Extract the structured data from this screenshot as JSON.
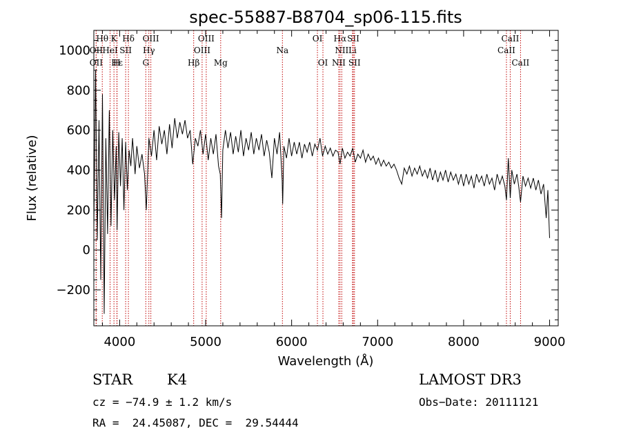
{
  "chart_data": {
    "type": "line",
    "title": "spec-55887-B8704_sp06-115.fits",
    "xlabel": "Wavelength (Å)",
    "ylabel": "Flux (relative)",
    "xlim": [
      3700,
      9100
    ],
    "ylim": [
      -380,
      1100
    ],
    "x_ticks": [
      4000,
      5000,
      6000,
      7000,
      8000,
      9000
    ],
    "y_ticks": [
      -200,
      0,
      200,
      400,
      600,
      800,
      1000
    ],
    "series": [
      {
        "name": "flux",
        "color": "#000000",
        "points": [
          [
            3700,
            100
          ],
          [
            3720,
            900
          ],
          [
            3740,
            50
          ],
          [
            3760,
            650
          ],
          [
            3780,
            -150
          ],
          [
            3800,
            780
          ],
          [
            3820,
            -320
          ],
          [
            3840,
            560
          ],
          [
            3860,
            80
          ],
          [
            3880,
            700
          ],
          [
            3900,
            120
          ],
          [
            3920,
            600
          ],
          [
            3940,
            250
          ],
          [
            3960,
            520
          ],
          [
            3970,
            100
          ],
          [
            3990,
            590
          ],
          [
            4010,
            320
          ],
          [
            4030,
            560
          ],
          [
            4050,
            200
          ],
          [
            4070,
            540
          ],
          [
            4090,
            300
          ],
          [
            4110,
            500
          ],
          [
            4130,
            420
          ],
          [
            4150,
            560
          ],
          [
            4180,
            380
          ],
          [
            4200,
            520
          ],
          [
            4230,
            410
          ],
          [
            4260,
            480
          ],
          [
            4290,
            380
          ],
          [
            4310,
            200
          ],
          [
            4340,
            560
          ],
          [
            4370,
            470
          ],
          [
            4400,
            600
          ],
          [
            4430,
            450
          ],
          [
            4460,
            620
          ],
          [
            4490,
            530
          ],
          [
            4520,
            600
          ],
          [
            4550,
            480
          ],
          [
            4580,
            630
          ],
          [
            4610,
            510
          ],
          [
            4640,
            660
          ],
          [
            4670,
            560
          ],
          [
            4700,
            640
          ],
          [
            4730,
            580
          ],
          [
            4760,
            650
          ],
          [
            4790,
            560
          ],
          [
            4820,
            600
          ],
          [
            4850,
            430
          ],
          [
            4880,
            560
          ],
          [
            4910,
            520
          ],
          [
            4940,
            600
          ],
          [
            4970,
            480
          ],
          [
            5000,
            580
          ],
          [
            5030,
            450
          ],
          [
            5060,
            560
          ],
          [
            5090,
            480
          ],
          [
            5120,
            580
          ],
          [
            5150,
            420
          ],
          [
            5170,
            380
          ],
          [
            5185,
            160
          ],
          [
            5200,
            500
          ],
          [
            5230,
            600
          ],
          [
            5260,
            510
          ],
          [
            5290,
            590
          ],
          [
            5320,
            480
          ],
          [
            5350,
            570
          ],
          [
            5380,
            490
          ],
          [
            5410,
            600
          ],
          [
            5440,
            470
          ],
          [
            5470,
            560
          ],
          [
            5500,
            500
          ],
          [
            5530,
            590
          ],
          [
            5560,
            480
          ],
          [
            5590,
            560
          ],
          [
            5620,
            500
          ],
          [
            5650,
            580
          ],
          [
            5680,
            470
          ],
          [
            5710,
            550
          ],
          [
            5740,
            490
          ],
          [
            5770,
            360
          ],
          [
            5800,
            560
          ],
          [
            5830,
            480
          ],
          [
            5860,
            590
          ],
          [
            5890,
            350
          ],
          [
            5896,
            230
          ],
          [
            5910,
            520
          ],
          [
            5940,
            460
          ],
          [
            5970,
            560
          ],
          [
            6000,
            470
          ],
          [
            6030,
            540
          ],
          [
            6060,
            480
          ],
          [
            6090,
            540
          ],
          [
            6120,
            460
          ],
          [
            6150,
            530
          ],
          [
            6180,
            490
          ],
          [
            6210,
            540
          ],
          [
            6240,
            470
          ],
          [
            6270,
            530
          ],
          [
            6300,
            500
          ],
          [
            6330,
            560
          ],
          [
            6360,
            470
          ],
          [
            6390,
            520
          ],
          [
            6420,
            480
          ],
          [
            6450,
            510
          ],
          [
            6480,
            470
          ],
          [
            6510,
            500
          ],
          [
            6540,
            490
          ],
          [
            6563,
            430
          ],
          [
            6590,
            510
          ],
          [
            6620,
            460
          ],
          [
            6650,
            490
          ],
          [
            6680,
            470
          ],
          [
            6710,
            510
          ],
          [
            6740,
            440
          ],
          [
            6770,
            480
          ],
          [
            6800,
            460
          ],
          [
            6830,
            500
          ],
          [
            6860,
            440
          ],
          [
            6890,
            480
          ],
          [
            6920,
            450
          ],
          [
            6950,
            470
          ],
          [
            6980,
            430
          ],
          [
            7010,
            460
          ],
          [
            7040,
            420
          ],
          [
            7070,
            450
          ],
          [
            7100,
            420
          ],
          [
            7130,
            440
          ],
          [
            7160,
            410
          ],
          [
            7190,
            430
          ],
          [
            7220,
            400
          ],
          [
            7250,
            360
          ],
          [
            7280,
            330
          ],
          [
            7310,
            410
          ],
          [
            7340,
            380
          ],
          [
            7370,
            420
          ],
          [
            7400,
            370
          ],
          [
            7430,
            410
          ],
          [
            7460,
            380
          ],
          [
            7490,
            420
          ],
          [
            7520,
            370
          ],
          [
            7550,
            400
          ],
          [
            7580,
            360
          ],
          [
            7610,
            410
          ],
          [
            7640,
            350
          ],
          [
            7670,
            400
          ],
          [
            7700,
            340
          ],
          [
            7730,
            390
          ],
          [
            7760,
            350
          ],
          [
            7790,
            400
          ],
          [
            7820,
            340
          ],
          [
            7850,
            390
          ],
          [
            7880,
            350
          ],
          [
            7910,
            380
          ],
          [
            7940,
            330
          ],
          [
            7970,
            380
          ],
          [
            8000,
            320
          ],
          [
            8030,
            380
          ],
          [
            8060,
            330
          ],
          [
            8090,
            370
          ],
          [
            8120,
            310
          ],
          [
            8150,
            380
          ],
          [
            8180,
            340
          ],
          [
            8210,
            370
          ],
          [
            8240,
            320
          ],
          [
            8270,
            380
          ],
          [
            8300,
            330
          ],
          [
            8330,
            360
          ],
          [
            8360,
            300
          ],
          [
            8390,
            380
          ],
          [
            8420,
            330
          ],
          [
            8450,
            370
          ],
          [
            8480,
            320
          ],
          [
            8498,
            250
          ],
          [
            8520,
            460
          ],
          [
            8542,
            260
          ],
          [
            8560,
            400
          ],
          [
            8590,
            330
          ],
          [
            8620,
            380
          ],
          [
            8640,
            320
          ],
          [
            8662,
            240
          ],
          [
            8690,
            370
          ],
          [
            8720,
            320
          ],
          [
            8750,
            360
          ],
          [
            8780,
            310
          ],
          [
            8810,
            360
          ],
          [
            8840,
            300
          ],
          [
            8870,
            350
          ],
          [
            8900,
            280
          ],
          [
            8930,
            330
          ],
          [
            8960,
            160
          ],
          [
            8980,
            300
          ],
          [
            9000,
            60
          ]
        ]
      }
    ],
    "line_markers": [
      {
        "label": "Hθ",
        "wavelength": 3798,
        "row": 0
      },
      {
        "label": "K",
        "wavelength": 3934,
        "row": 0
      },
      {
        "label": "Hδ",
        "wavelength": 4102,
        "row": 0
      },
      {
        "label": "OIII",
        "wavelength": 4363,
        "row": 0
      },
      {
        "label": "OIII",
        "wavelength": 5007,
        "row": 0
      },
      {
        "label": "OI",
        "wavelength": 6300,
        "row": 0
      },
      {
        "label": "Hα",
        "wavelength": 6563,
        "row": 0
      },
      {
        "label": "SII",
        "wavelength": 6717,
        "row": 0
      },
      {
        "label": "CaII",
        "wavelength": 8542,
        "row": 0
      },
      {
        "label": "OII",
        "wavelength": 3727,
        "row": 1
      },
      {
        "label": "HeI",
        "wavelength": 3889,
        "row": 1
      },
      {
        "label": "SII",
        "wavelength": 4070,
        "row": 1
      },
      {
        "label": "Hγ",
        "wavelength": 4340,
        "row": 1
      },
      {
        "label": "OIII",
        "wavelength": 4959,
        "row": 1
      },
      {
        "label": "Na",
        "wavelength": 5893,
        "row": 1
      },
      {
        "label": "NII",
        "wavelength": 6583,
        "row": 1
      },
      {
        "label": "Li",
        "wavelength": 6708,
        "row": 1
      },
      {
        "label": "CaII",
        "wavelength": 8498,
        "row": 1
      },
      {
        "label": "OII",
        "wavelength": 3727,
        "row": 2
      },
      {
        "label": "Hε",
        "wavelength": 3970,
        "row": 2
      },
      {
        "label": "H",
        "wavelength": 3968,
        "row": 2
      },
      {
        "label": "G",
        "wavelength": 4304,
        "row": 2
      },
      {
        "label": "Hβ",
        "wavelength": 4861,
        "row": 2
      },
      {
        "label": "Mg",
        "wavelength": 5175,
        "row": 2
      },
      {
        "label": "OI",
        "wavelength": 6364,
        "row": 2
      },
      {
        "label": "NII",
        "wavelength": 6548,
        "row": 2
      },
      {
        "label": "SII",
        "wavelength": 6731,
        "row": 2
      },
      {
        "label": "CaII",
        "wavelength": 8662,
        "row": 2
      }
    ],
    "marker_color": "#c00000"
  },
  "footer": {
    "object_class": "STAR",
    "subclass": "K4",
    "survey": "LAMOST DR3",
    "redshift": "cz = −74.9 ± 1.2 km/s",
    "obs_date": "Obs−Date: 20111121",
    "coords": "RA =  24.45087, DEC =  29.54444"
  }
}
